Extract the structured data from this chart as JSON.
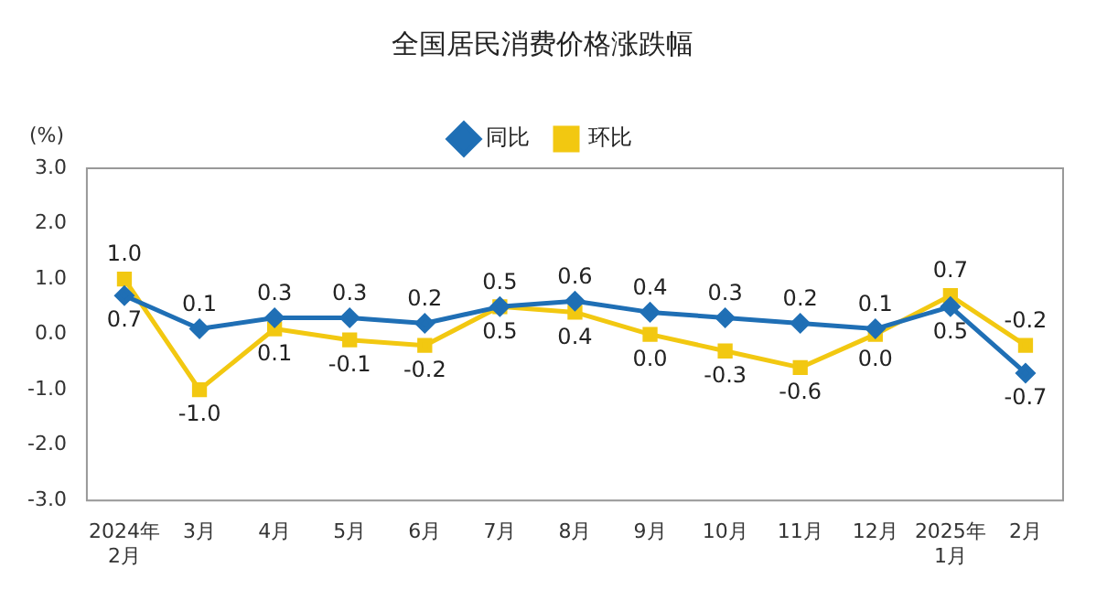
{
  "chart_data": {
    "type": "line",
    "title": "全国居民消费价格涨跌幅",
    "ylabel": "(%)",
    "categories": [
      "2024年\n2月",
      "3月",
      "4月",
      "5月",
      "6月",
      "7月",
      "8月",
      "9月",
      "10月",
      "11月",
      "12月",
      "2025年\n1月",
      "2月"
    ],
    "series": [
      {
        "name": "同比",
        "color": "#1f6fb5",
        "marker": "diamond",
        "values": [
          0.7,
          0.1,
          0.3,
          0.3,
          0.2,
          0.5,
          0.6,
          0.4,
          0.3,
          0.2,
          0.1,
          0.5,
          -0.7
        ],
        "value_labels": [
          "0.7",
          "0.1",
          "0.3",
          "0.3",
          "0.2",
          "0.5",
          "0.6",
          "0.4",
          "0.3",
          "0.2",
          "0.1",
          "0.5",
          "-0.7"
        ]
      },
      {
        "name": "环比",
        "color": "#f2c811",
        "marker": "square",
        "values": [
          1.0,
          -1.0,
          0.1,
          -0.1,
          -0.2,
          0.5,
          0.4,
          0.0,
          -0.3,
          -0.6,
          0.0,
          0.7,
          -0.2
        ],
        "value_labels": [
          "1.0",
          "-1.0",
          "0.1",
          "-0.1",
          "-0.2",
          "0.5",
          "0.4",
          "0.0",
          "-0.3",
          "-0.6",
          "0.0",
          "0.7",
          "-0.2"
        ]
      }
    ],
    "ylim": [
      -3,
      3
    ],
    "yticks": [
      {
        "value": -3,
        "label": "-3.0"
      },
      {
        "value": -2,
        "label": "-2.0"
      },
      {
        "value": -1,
        "label": "-1.0"
      },
      {
        "value": 0,
        "label": "0.0"
      },
      {
        "value": 1,
        "label": "1.0"
      },
      {
        "value": 2,
        "label": "2.0"
      },
      {
        "value": 3,
        "label": "3.0"
      }
    ],
    "grid": false,
    "legend": "top",
    "line_style": "solid"
  }
}
